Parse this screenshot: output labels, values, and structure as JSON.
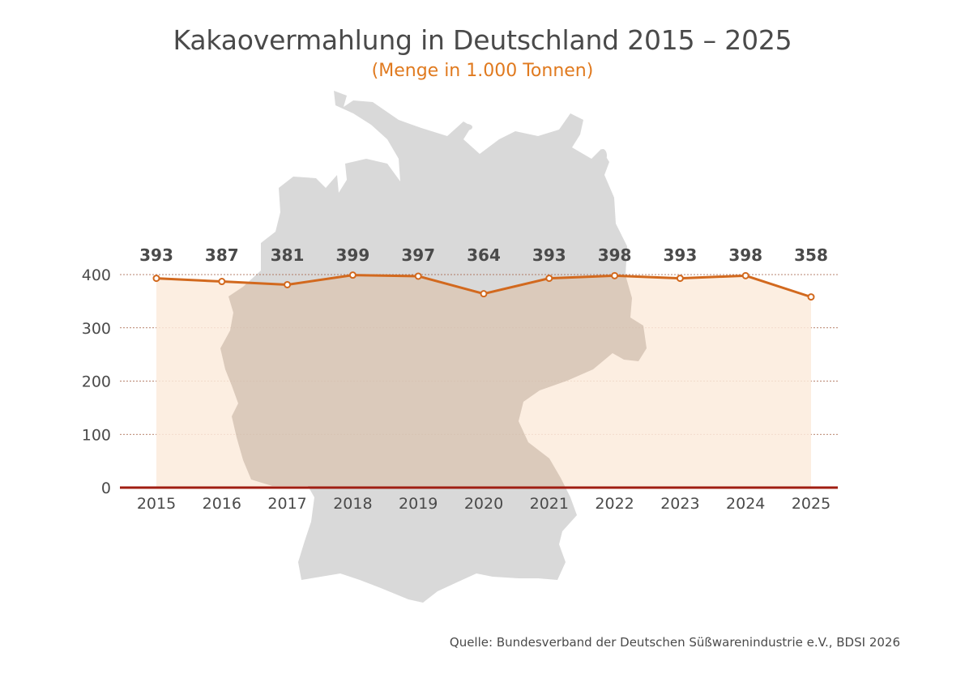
{
  "title": "Kakaovermahlung in Deutschland 2015 – 2025",
  "subtitle": "(Menge in 1.000 Tonnen)",
  "source": "Quelle: Bundesverband der Deutschen Süßwarenindustrie e.V., BDSI 2026",
  "colors": {
    "line": "#d2691e",
    "area": "#fcebdc",
    "map": "#d9d9d9",
    "baseline": "#a01e12",
    "grid": "#a05a3c",
    "text": "#4a4a4a"
  },
  "chart_data": {
    "type": "line",
    "categories": [
      "2015",
      "2016",
      "2017",
      "2018",
      "2019",
      "2020",
      "2021",
      "2022",
      "2023",
      "2024",
      "2025"
    ],
    "values": [
      393,
      387,
      381,
      399,
      397,
      364,
      393,
      398,
      393,
      398,
      358
    ],
    "data_labels": [
      "393",
      "387",
      "381",
      "399",
      "397",
      "364",
      "393",
      "398",
      "393",
      "398",
      "358"
    ],
    "yticks": [
      "0",
      "100",
      "200",
      "300",
      "400"
    ],
    "ylim": [
      0,
      400
    ],
    "grid": true,
    "area_fill": true,
    "background": "germany-map-icon"
  }
}
